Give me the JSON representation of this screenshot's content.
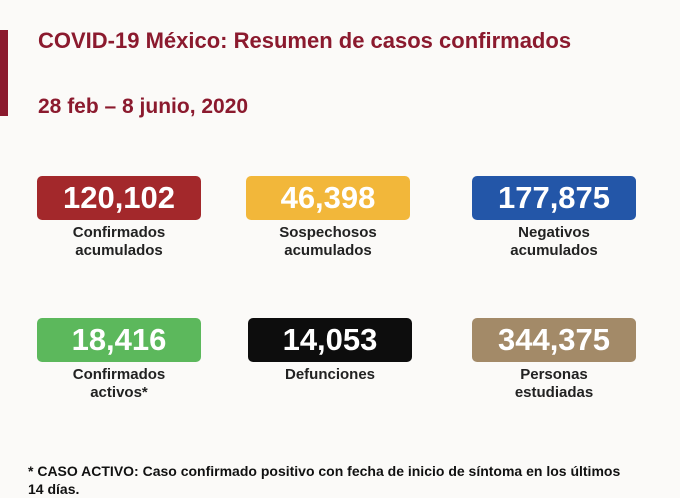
{
  "header": {
    "title": "COVID-19 México: Resumen de casos confirmados",
    "date": "28 feb – 8 junio, 2020"
  },
  "cards": [
    {
      "value": "120,102",
      "label": [
        "Confirmados",
        "acumulados"
      ]
    },
    {
      "value": "46,398",
      "label": [
        "Sospechosos",
        "acumulados"
      ]
    },
    {
      "value": "177,875",
      "label": [
        "Negativos",
        "acumulados"
      ]
    },
    {
      "value": "18,416",
      "label": [
        "Confirmados",
        "activos*"
      ]
    },
    {
      "value": "14,053",
      "label": [
        "Defunciones"
      ]
    },
    {
      "value": "344,375",
      "label": [
        "Personas",
        "estudiadas"
      ]
    }
  ],
  "footnote": "* CASO ACTIVO: Caso confirmado positivo con fecha de inicio de síntoma en los últimos 14 días."
}
